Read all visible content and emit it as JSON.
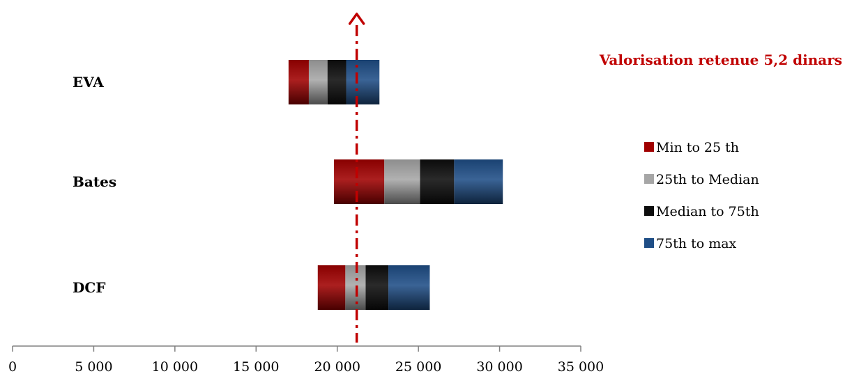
{
  "chart_data": {
    "type": "bar",
    "orientation": "horizontal",
    "stacked": true,
    "categories": [
      "EVA",
      "Bates",
      "DCF"
    ],
    "base": [
      17000,
      19800,
      18800
    ],
    "series": [
      {
        "name": "Min to 25 th",
        "values": [
          1250,
          3100,
          1700
        ],
        "color": "#a00000"
      },
      {
        "name": "25th to Median",
        "values": [
          1150,
          2200,
          1250
        ],
        "color": "#a6a6a6"
      },
      {
        "name": "Median to 75th",
        "values": [
          1150,
          2100,
          1400
        ],
        "color": "#0d0d0d"
      },
      {
        "name": "75th to max",
        "values": [
          2050,
          3000,
          2550
        ],
        "color": "#1f4e86"
      }
    ],
    "xlim": [
      0,
      35000
    ],
    "xticks": [
      0,
      5000,
      10000,
      15000,
      20000,
      25000,
      30000,
      35000
    ],
    "xtick_labels": [
      "0",
      "5 000",
      "10 000",
      "15 000",
      "20 000",
      "25 000",
      "30 000",
      "35 000"
    ],
    "reference_line": {
      "x": 21200,
      "color": "#c00000",
      "style": "dash-dot",
      "arrow": "up"
    },
    "annotation": "Valorisation retenue 5,2 dinars",
    "legend_position": "right",
    "grid": false,
    "title": "",
    "xlabel": "",
    "ylabel": ""
  }
}
